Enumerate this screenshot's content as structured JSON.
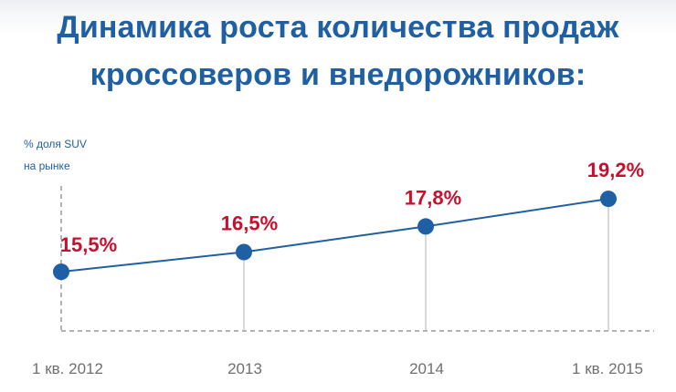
{
  "colors": {
    "title": "#1f5fa3",
    "line": "#1f5fa3",
    "point": "#1f5fa3",
    "data_label": "#c8102e",
    "tick_label": "#6f6f6f",
    "guide": "#bdbdbd"
  },
  "chart_data": {
    "type": "line",
    "title_lines": [
      "Динамика роста количества продаж",
      "кроссоверов и внедорожников:"
    ],
    "ylabel_lines": [
      "% доля SUV",
      "на рынке"
    ],
    "xlabel": "",
    "categories": [
      "1 кв. 2012",
      "2013",
      "2014",
      "1 кв. 2015"
    ],
    "values": [
      15.5,
      16.5,
      17.8,
      19.2
    ],
    "data_labels": [
      "15,5%",
      "16,5%",
      "17,8%",
      "19,2%"
    ],
    "ylim": [
      12.5,
      20.5
    ],
    "grid": false,
    "legend": "none"
  }
}
